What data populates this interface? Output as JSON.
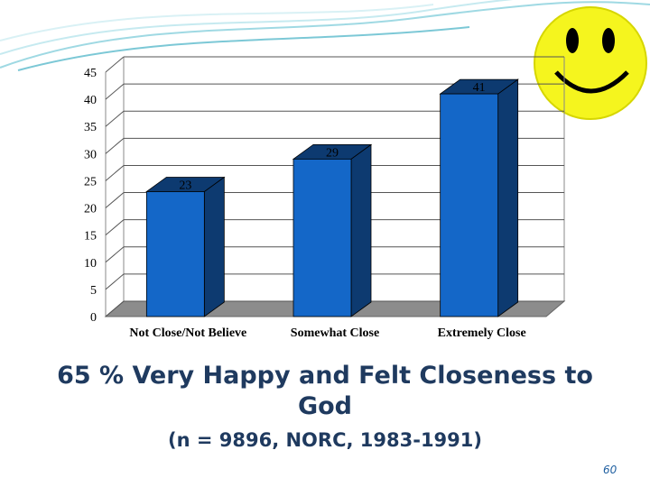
{
  "chart_data": {
    "type": "bar",
    "title": "65 % Very Happy and Felt Closeness to God",
    "subtitle": "(n = 9896, NORC, 1983-1991)",
    "page_number": "60",
    "categories": [
      "Not Close/Not Believe",
      "Somewhat Close",
      "Extremely Close"
    ],
    "values": [
      23,
      29,
      41
    ],
    "color": "#1467c8",
    "side_color": "#0d3a70",
    "ylim": [
      0,
      45
    ],
    "yticks": [
      0,
      5,
      10,
      15,
      20,
      25,
      30,
      35,
      40,
      45
    ],
    "grid": true
  }
}
